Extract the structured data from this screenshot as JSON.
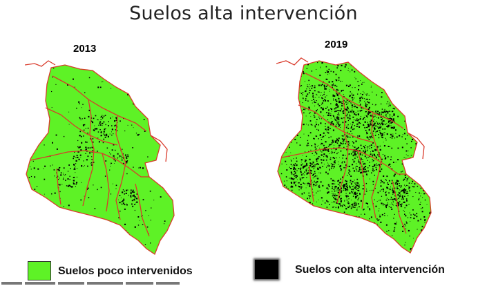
{
  "title": "Suelos alta intervención",
  "maps": [
    {
      "year": "2013",
      "intervention_level": 0.06
    },
    {
      "year": "2019",
      "intervention_level": 0.3
    }
  ],
  "legend": [
    {
      "label": "Suelos poco intervenidos",
      "color": "#5ef226"
    },
    {
      "label": "Suelos con alta intervención",
      "color": "#000000"
    }
  ],
  "colors": {
    "land": "#5ef226",
    "intervention": "#000000",
    "boundary": "#d93a2b"
  }
}
